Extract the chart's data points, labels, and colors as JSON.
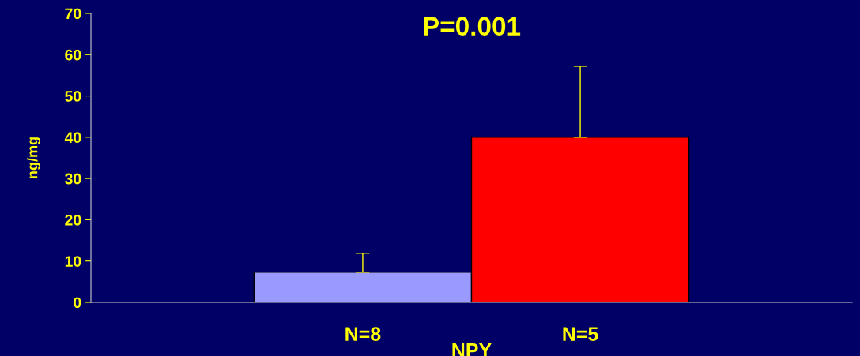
{
  "chart_data": {
    "type": "bar",
    "title": "P=0.001",
    "xlabel": "NPY",
    "ylabel": "ng/mg",
    "categories": [
      "N=8",
      "N=5"
    ],
    "values": [
      7.3,
      40.0
    ],
    "colors": [
      "#9999ff",
      "#ff0000"
    ],
    "errors": [
      [
        7.3,
        11.9
      ],
      [
        40.0,
        57.2
      ]
    ],
    "ylim": [
      0,
      70
    ],
    "yticks": [
      0,
      10,
      20,
      30,
      40,
      50,
      60,
      70
    ],
    "grid": false,
    "legend": false
  }
}
